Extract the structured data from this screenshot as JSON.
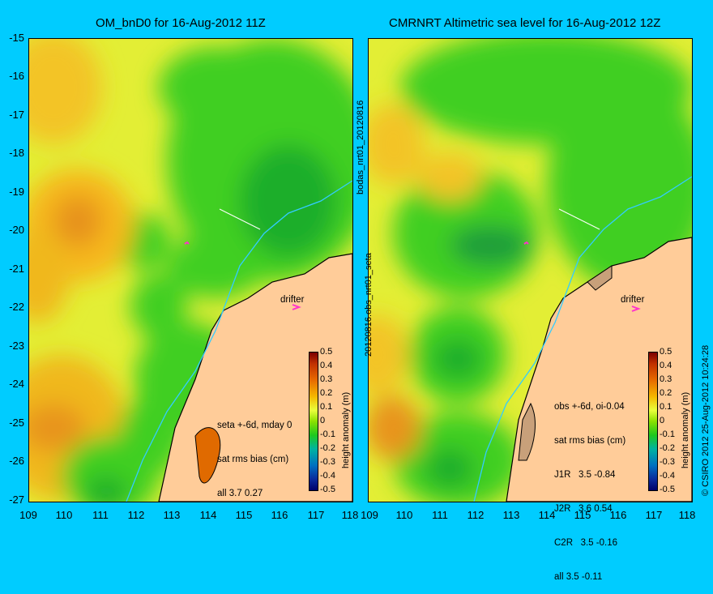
{
  "left_title": "OM_bnD0 for 16-Aug-2012 11Z",
  "right_title": "CMRNRT Altimetric sea level  for 16-Aug-2012 12Z",
  "y_ticks": [
    "-15",
    "-16",
    "-17",
    "-18",
    "-19",
    "-20",
    "-21",
    "-22",
    "-23",
    "-24",
    "-25",
    "-26",
    "-27"
  ],
  "x_ticks": [
    "109",
    "110",
    "111",
    "112",
    "113",
    "114",
    "115",
    "116",
    "117",
    "118"
  ],
  "side_label_1": "bodas_nrt01_20120816",
  "side_label_2": "20120816.obs_nrt01_seta",
  "credit": "© CSIRO 2012  25-Aug-2012 10:24:28",
  "drifter_label": "drifter",
  "colorbar": {
    "title": "height anomaly (m)",
    "labels": [
      "0.5",
      "0.4",
      "0.3",
      "0.2",
      "0.1",
      "0",
      "-0.1",
      "-0.2",
      "-0.3",
      "-0.4",
      "-0.5"
    ],
    "colors": {
      "high": "#7a0000",
      "mid_high": "#f5b800",
      "zero": "#8ae000",
      "mid_low": "#00b3a0",
      "low": "#00006a"
    }
  },
  "left_stats": [
    "seta +-6d, mday 0",
    "sat rms bias (cm)",
    "all 3.7 0.27"
  ],
  "right_stats": [
    "obs +-6d, oi-0.04",
    "sat rms bias (cm)",
    "J1R   3.5 -0.84",
    "J2R   3.6 0.54",
    "C2R   3.5 -0.16",
    "all 3.5 -0.11"
  ],
  "colors": {
    "background": "#00ccff",
    "land": "#ffcc99",
    "marker": "#ff33cc",
    "current": "#33ccff"
  }
}
